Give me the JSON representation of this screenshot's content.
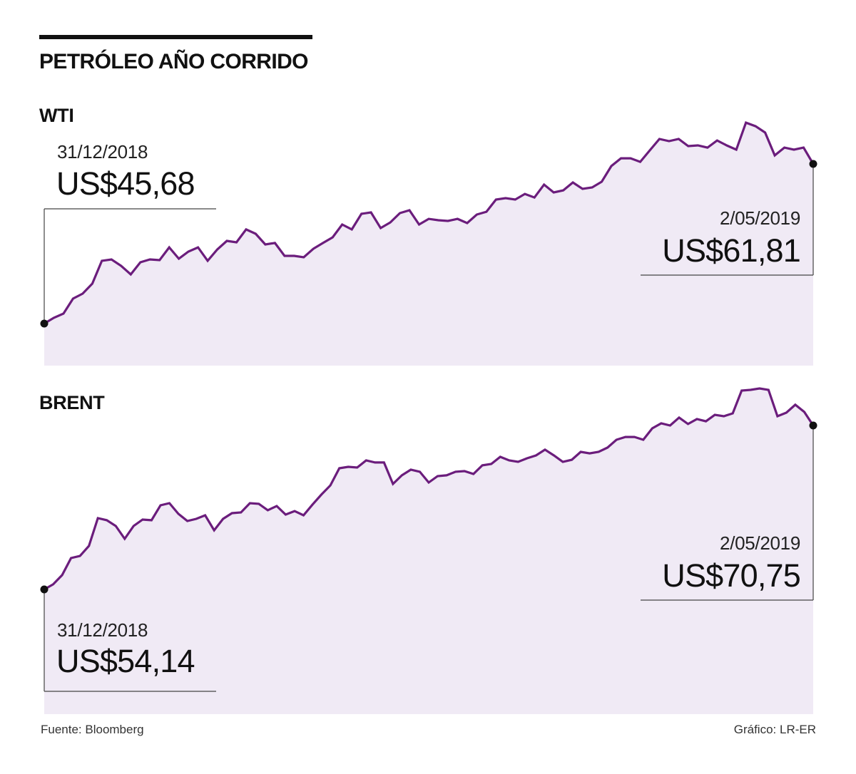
{
  "title": "PETRÓLEO AÑO CORRIDO",
  "source": "Fuente: Bloomberg",
  "credit": "Gráfico: LR-ER",
  "colors": {
    "line": "#6b1d7c",
    "fill": "#f0eaf5",
    "marker": "#111111",
    "leader": "#444444"
  },
  "chart_data": [
    {
      "type": "area",
      "title": "WTI",
      "xlabel": "",
      "ylabel": "US$",
      "x_range": [
        "31/12/2018",
        "2/05/2019"
      ],
      "ylim": [
        41.43,
        66.85
      ],
      "grid": false,
      "start": {
        "date": "31/12/2018",
        "label": "US$45,68",
        "value": 45.68
      },
      "end": {
        "date": "2/05/2019",
        "label": "US$61,81",
        "value": 61.81
      },
      "values": [
        45.68,
        46.26,
        46.69,
        48.2,
        48.7,
        49.71,
        52.02,
        52.16,
        51.51,
        50.65,
        51.87,
        52.16,
        52.09,
        53.38,
        52.23,
        52.95,
        53.38,
        52.02,
        53.17,
        54.03,
        53.89,
        55.19,
        54.75,
        53.67,
        53.82,
        52.52,
        52.52,
        52.38,
        53.24,
        53.82,
        54.39,
        55.69,
        55.19,
        56.77,
        56.91,
        55.33,
        55.9,
        56.84,
        57.13,
        55.69,
        56.26,
        56.12,
        56.05,
        56.26,
        55.83,
        56.7,
        56.98,
        58.21,
        58.35,
        58.21,
        58.78,
        58.42,
        59.72,
        58.93,
        59.14,
        59.94,
        59.29,
        59.43,
        60.01,
        61.59,
        62.38,
        62.38,
        62.02,
        63.18,
        64.33,
        64.11,
        64.33,
        63.61,
        63.68,
        63.46,
        64.18,
        63.68,
        63.25,
        65.98,
        65.62,
        64.98,
        62.67,
        63.46,
        63.25,
        63.46,
        61.81
      ]
    },
    {
      "type": "area",
      "title": "BRENT",
      "xlabel": "",
      "ylabel": "US$",
      "x_range": [
        "31/12/2018",
        "2/05/2019"
      ],
      "ylim": [
        41.5,
        75.59
      ],
      "grid": false,
      "start": {
        "date": "31/12/2018",
        "label": "US$54,14",
        "value": 54.14
      },
      "end": {
        "date": "2/05/2019",
        "label": "US$70,75",
        "value": 70.75
      },
      "values": [
        54.14,
        54.65,
        55.59,
        57.32,
        57.53,
        58.55,
        61.36,
        61.15,
        60.57,
        59.27,
        60.57,
        61.22,
        61.15,
        62.66,
        62.88,
        61.8,
        61.07,
        61.29,
        61.65,
        60.13,
        61.29,
        61.87,
        61.94,
        62.88,
        62.81,
        62.16,
        62.59,
        61.72,
        62.08,
        61.65,
        62.73,
        63.75,
        64.68,
        66.42,
        66.56,
        66.49,
        67.21,
        67.0,
        67.0,
        64.83,
        65.7,
        66.27,
        66.06,
        64.97,
        65.62,
        65.7,
        66.06,
        66.13,
        65.84,
        66.71,
        66.85,
        67.57,
        67.21,
        67.07,
        67.43,
        67.72,
        68.3,
        67.72,
        67.07,
        67.28,
        68.08,
        67.93,
        68.08,
        68.51,
        69.31,
        69.59,
        69.59,
        69.31,
        70.46,
        70.97,
        70.75,
        71.55,
        70.9,
        71.4,
        71.18,
        71.83,
        71.69,
        71.98,
        74.29,
        74.36,
        74.51,
        74.36,
        71.69,
        72.05,
        72.85,
        72.12,
        70.75
      ]
    }
  ]
}
